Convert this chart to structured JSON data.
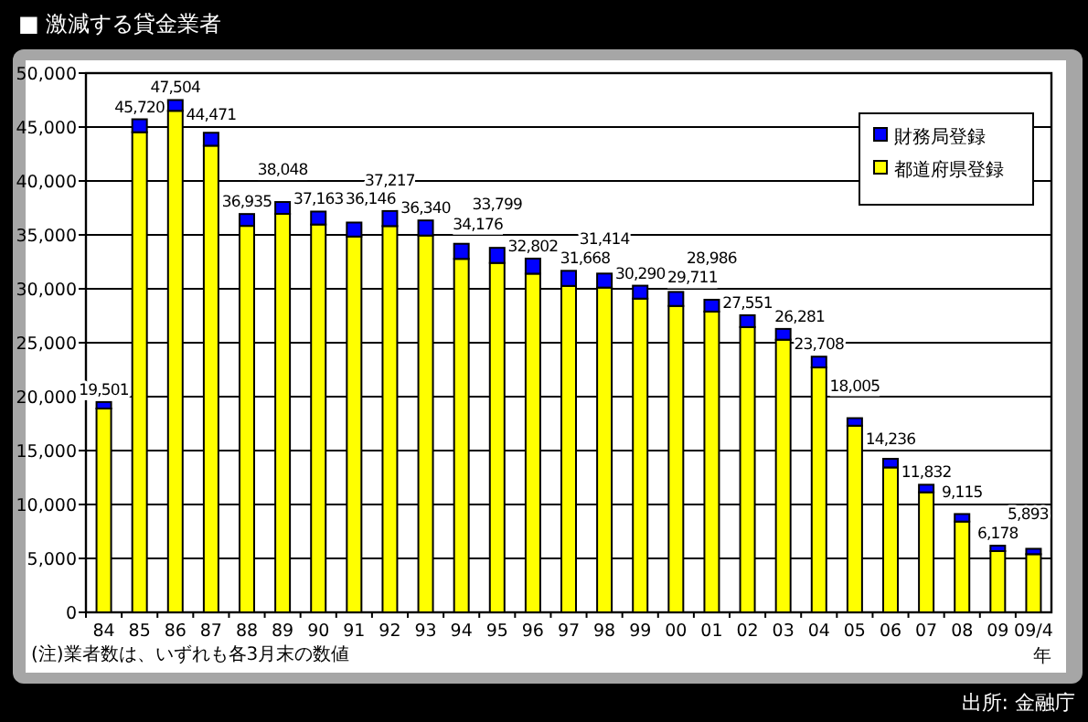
{
  "chart_data": {
    "type": "bar",
    "title": "■  激減する貸金業者",
    "xlabel": "年",
    "categories": [
      "84",
      "85",
      "86",
      "87",
      "88",
      "89",
      "90",
      "91",
      "92",
      "93",
      "94",
      "95",
      "96",
      "97",
      "98",
      "99",
      "00",
      "01",
      "02",
      "03",
      "04",
      "05",
      "06",
      "07",
      "08",
      "09",
      "09/4"
    ],
    "stacked": true,
    "series": [
      {
        "name": "都道府県登録",
        "color": "#ffff00",
        "values": [
          18901,
          44520,
          46504,
          43271,
          35835,
          36948,
          35963,
          34846,
          35817,
          34940,
          32776,
          32399,
          31402,
          30268,
          30114,
          29090,
          28411,
          27886,
          26451,
          25281,
          22708,
          17305,
          13436,
          11132,
          8415,
          5678,
          5393
        ]
      },
      {
        "name": "財務局登録",
        "color": "#0000ff",
        "values": [
          600,
          1200,
          1000,
          1200,
          1100,
          1100,
          1200,
          1300,
          1400,
          1400,
          1400,
          1400,
          1400,
          1400,
          1300,
          1200,
          1300,
          1100,
          1100,
          1000,
          1000,
          700,
          800,
          700,
          700,
          500,
          500
        ]
      }
    ],
    "totals": [
      "19,501",
      "45,720",
      "47,504",
      "44,471",
      "36,935",
      "38,048",
      "37,163",
      "36,146",
      "37,217",
      "36,340",
      "34,176",
      "33,799",
      "32,802",
      "31,668",
      "31,414",
      "30,290",
      "29,711",
      "28,986",
      "27,551",
      "26,281",
      "23,708",
      "18,005",
      "14,236",
      "11,832",
      "9,115",
      "6,178",
      "5,893"
    ],
    "ylim": [
      0,
      50000
    ],
    "yticks": [
      0,
      {
        "value": 5000,
        "label": "5,000"
      },
      {
        "value": 10000,
        "label": "10,000"
      },
      {
        "value": 15000,
        "label": "15,000"
      },
      {
        "value": 20000,
        "label": "20,000"
      },
      {
        "value": 25000,
        "label": "25,000"
      },
      {
        "value": 30000,
        "label": "30,000"
      },
      {
        "value": 35000,
        "label": "35,000"
      },
      {
        "value": 40000,
        "label": "40,000"
      },
      {
        "value": 45000,
        "label": "45,000"
      },
      {
        "value": 50000,
        "label": "50,000"
      }
    ],
    "grid": "y",
    "legend": "top right",
    "annotations": [
      "(注)業者数は、いずれも各3月末の数値",
      "出所: 金融庁"
    ]
  }
}
